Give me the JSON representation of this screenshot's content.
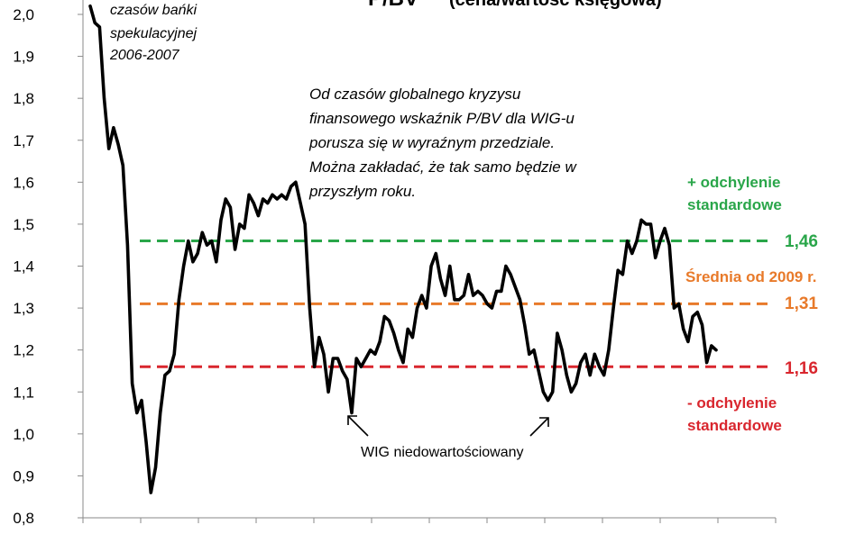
{
  "chart_data": {
    "type": "line",
    "title": "P/BV",
    "title_sub": "(cena/wartość księgowa)",
    "xlabel": "",
    "ylabel": "",
    "ylim": [
      0.8,
      2.0
    ],
    "y_ticks": [
      "0,8",
      "0,9",
      "1,0",
      "1,1",
      "1,2",
      "1,3",
      "1,4",
      "1,5",
      "1,6",
      "1,7",
      "1,8",
      "1,9",
      "2,0"
    ],
    "y_tick_values": [
      0.8,
      0.9,
      1.0,
      1.1,
      1.2,
      1.3,
      1.4,
      1.5,
      1.6,
      1.7,
      1.8,
      1.9,
      2.0
    ],
    "grid": false,
    "series": [
      {
        "values": [
          2.02,
          1.98,
          1.97,
          1.8,
          1.68,
          1.73,
          1.69,
          1.64,
          1.45,
          1.12,
          1.05,
          1.08,
          0.98,
          0.86,
          0.92,
          1.05,
          1.14,
          1.15,
          1.19,
          1.32,
          1.4,
          1.46,
          1.41,
          1.43,
          1.48,
          1.45,
          1.46,
          1.41,
          1.51,
          1.56,
          1.54,
          1.44,
          1.5,
          1.49,
          1.57,
          1.55,
          1.52,
          1.56,
          1.55,
          1.57,
          1.56,
          1.57,
          1.56,
          1.59,
          1.6,
          1.55,
          1.5,
          1.3,
          1.16,
          1.23,
          1.19,
          1.1,
          1.18,
          1.18,
          1.15,
          1.13,
          1.05,
          1.18,
          1.16,
          1.18,
          1.2,
          1.19,
          1.22,
          1.28,
          1.27,
          1.24,
          1.2,
          1.17,
          1.25,
          1.23,
          1.3,
          1.33,
          1.3,
          1.4,
          1.43,
          1.37,
          1.33,
          1.4,
          1.32,
          1.32,
          1.33,
          1.38,
          1.33,
          1.34,
          1.33,
          1.31,
          1.3,
          1.34,
          1.34,
          1.4,
          1.38,
          1.35,
          1.32,
          1.26,
          1.19,
          1.2,
          1.15,
          1.1,
          1.08,
          1.1,
          1.24,
          1.2,
          1.14,
          1.1,
          1.12,
          1.17,
          1.19,
          1.14,
          1.19,
          1.16,
          1.14,
          1.2,
          1.3,
          1.39,
          1.38,
          1.46,
          1.43,
          1.46,
          1.51,
          1.5,
          1.5,
          1.42,
          1.46,
          1.49,
          1.45,
          1.3,
          1.31,
          1.25,
          1.22,
          1.28,
          1.29,
          1.26,
          1.17,
          1.21,
          1.2
        ]
      }
    ],
    "reference_lines": [
      {
        "value": 1.46,
        "label": "1,46",
        "color": "#2aa64a"
      },
      {
        "value": 1.31,
        "label": "1,31",
        "color": "#e87a2a"
      },
      {
        "value": 1.16,
        "label": "1,16",
        "color": "#d9262e"
      }
    ],
    "line_color": "#000000",
    "annotations": {
      "bubble_lines": [
        "czasów bańki",
        "spekulacyjnej",
        "2006-2007"
      ],
      "note_lines": [
        "Od czasów globalnego kryzysu",
        "finansowego wskaźnik P/BV dla WIG-u",
        "porusza się w wyraźnym przedziale.",
        "Można zakładać, że tak samo będzie w",
        "przyszłym roku."
      ],
      "undervalued": "WIG niedowartościowany",
      "plus_sd": [
        "+ odchylenie",
        "standardowe"
      ],
      "mean": "Średnia od 2009 r.",
      "minus_sd": [
        "- odchylenie",
        "standardowe"
      ]
    }
  }
}
